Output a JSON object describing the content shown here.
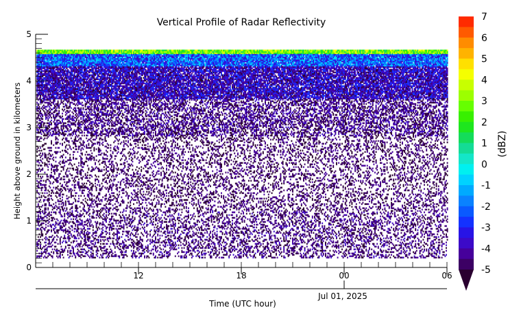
{
  "chart_data": {
    "type": "heatmap",
    "title": "Vertical Profile of Radar Reflectivity",
    "xlabel": "Time (UTC hour)",
    "ylabel": "Height above ground in kilometers",
    "x_date_label": "Jul 01, 2025",
    "x_tick_labels": [
      "12",
      "18",
      "00",
      "06"
    ],
    "x_tick_hours": [
      12,
      18,
      24,
      30
    ],
    "xlim_hours": [
      6,
      30
    ],
    "y_tick_labels": [
      "0",
      "1",
      "2",
      "3",
      "4",
      "5"
    ],
    "y_ticks": [
      0,
      1,
      2,
      3,
      4,
      5
    ],
    "ylim_km": [
      0,
      5
    ],
    "echo_top_km": 4.65,
    "colorbar": {
      "label": "(dBZ)",
      "tick_labels": [
        "7",
        "6",
        "5",
        "4",
        "3",
        "2",
        "1",
        "0",
        "-1",
        "-2",
        "-3",
        "-4",
        "-5"
      ],
      "levels": [
        7,
        6.5,
        6,
        5.5,
        5,
        4.5,
        4,
        3.5,
        3,
        2.5,
        2,
        1.5,
        1,
        0.5,
        0,
        -0.5,
        -1,
        -1.5,
        -2,
        -2.5,
        -3,
        -3.5,
        -4,
        -4.5,
        -5
      ],
      "colors": [
        "#ff2b00",
        "#ff5a00",
        "#ff8c00",
        "#ffb300",
        "#ffe000",
        "#f5ff00",
        "#c8ff00",
        "#9cff00",
        "#66ff00",
        "#38f000",
        "#1ee61e",
        "#14dc5a",
        "#14dc96",
        "#14e6c8",
        "#00f0f0",
        "#00d2ff",
        "#00aaff",
        "#0a82ff",
        "#0a5aff",
        "#1432ff",
        "#2814e6",
        "#3c0ac8",
        "#46009b",
        "#3c0064"
      ],
      "under_color": "#2a0030"
    }
  }
}
